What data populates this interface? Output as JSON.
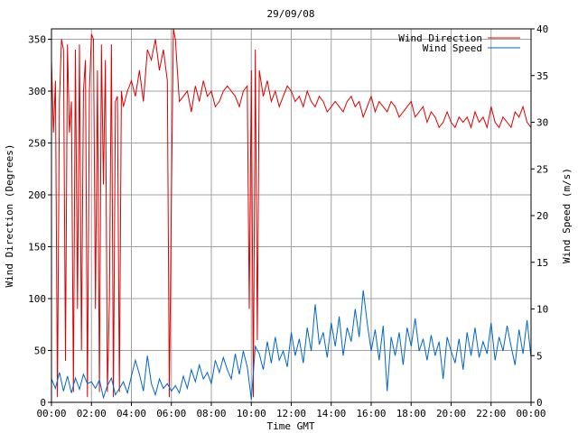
{
  "chart_data": {
    "type": "line",
    "title": "29/09/08",
    "xlabel": "Time GMT",
    "ylabel_left": "Wind Direction (Degrees)",
    "ylabel_right": "Wind Speed (m/s)",
    "x_range_hours": [
      0,
      24
    ],
    "x_tick_labels": [
      "00:00",
      "02:00",
      "04:00",
      "06:00",
      "08:00",
      "10:00",
      "12:00",
      "14:00",
      "16:00",
      "18:00",
      "20:00",
      "22:00",
      "00:00"
    ],
    "ylim_left": [
      0,
      360
    ],
    "y_ticks_left": [
      0,
      50,
      100,
      150,
      200,
      250,
      300,
      350
    ],
    "ylim_right": [
      0,
      40
    ],
    "y_ticks_right": [
      0,
      5,
      10,
      15,
      20,
      25,
      30,
      35,
      40
    ],
    "grid": true,
    "legend_position": "top-right",
    "colors": {
      "direction": "#dd0000",
      "speed": "#0066cc",
      "grid": "#a0a0a0"
    },
    "series": [
      {
        "name": "Wind Direction",
        "axis": "left",
        "x": [
          0,
          0.1,
          0.2,
          0.3,
          0.4,
          0.5,
          0.6,
          0.7,
          0.8,
          0.9,
          1.0,
          1.1,
          1.2,
          1.3,
          1.4,
          1.5,
          1.6,
          1.7,
          1.8,
          1.9,
          2.0,
          2.1,
          2.2,
          2.3,
          2.4,
          2.5,
          2.6,
          2.7,
          2.8,
          2.9,
          3.0,
          3.1,
          3.2,
          3.3,
          3.4,
          3.5,
          3.6,
          3.8,
          4.0,
          4.2,
          4.4,
          4.6,
          4.8,
          5.0,
          5.2,
          5.4,
          5.6,
          5.8,
          5.9,
          6.0,
          6.1,
          6.2,
          6.3,
          6.4,
          6.6,
          6.8,
          7.0,
          7.2,
          7.4,
          7.6,
          7.8,
          8.0,
          8.2,
          8.4,
          8.6,
          8.8,
          9.0,
          9.2,
          9.4,
          9.6,
          9.8,
          9.9,
          10.0,
          10.1,
          10.2,
          10.3,
          10.4,
          10.6,
          10.8,
          11.0,
          11.2,
          11.4,
          11.6,
          11.8,
          12.0,
          12.2,
          12.4,
          12.6,
          12.8,
          13.0,
          13.2,
          13.4,
          13.6,
          13.8,
          14.0,
          14.2,
          14.4,
          14.6,
          14.8,
          15.0,
          15.2,
          15.4,
          15.6,
          15.8,
          16.0,
          16.2,
          16.4,
          16.6,
          16.8,
          17.0,
          17.2,
          17.4,
          17.6,
          17.8,
          18.0,
          18.2,
          18.4,
          18.6,
          18.8,
          19.0,
          19.2,
          19.4,
          19.6,
          19.8,
          20.0,
          20.2,
          20.4,
          20.6,
          20.8,
          21.0,
          21.2,
          21.4,
          21.6,
          21.8,
          22.0,
          22.2,
          22.4,
          22.6,
          22.8,
          23.0,
          23.2,
          23.4,
          23.6,
          23.8,
          24.0
        ],
        "values": [
          330,
          260,
          310,
          5,
          290,
          350,
          340,
          40,
          345,
          260,
          290,
          10,
          340,
          90,
          345,
          50,
          300,
          330,
          5,
          300,
          355,
          350,
          90,
          320,
          10,
          345,
          210,
          330,
          10,
          100,
          345,
          5,
          290,
          295,
          10,
          300,
          285,
          300,
          310,
          295,
          320,
          290,
          340,
          330,
          350,
          320,
          340,
          310,
          5,
          200,
          360,
          350,
          320,
          290,
          295,
          300,
          280,
          305,
          290,
          310,
          295,
          300,
          285,
          290,
          300,
          305,
          300,
          295,
          285,
          300,
          305,
          90,
          320,
          5,
          340,
          60,
          320,
          295,
          310,
          290,
          300,
          285,
          295,
          305,
          300,
          290,
          295,
          285,
          300,
          290,
          285,
          295,
          290,
          280,
          285,
          290,
          285,
          280,
          290,
          295,
          285,
          290,
          275,
          285,
          295,
          280,
          290,
          285,
          280,
          290,
          285,
          275,
          280,
          285,
          290,
          275,
          280,
          285,
          270,
          280,
          275,
          265,
          270,
          280,
          270,
          265,
          275,
          270,
          275,
          265,
          280,
          270,
          275,
          265,
          285,
          270,
          265,
          275,
          270,
          265,
          280,
          275,
          285,
          270,
          265
        ]
      },
      {
        "name": "Wind Speed",
        "axis": "right",
        "x": [
          0,
          0.2,
          0.4,
          0.6,
          0.8,
          1.0,
          1.2,
          1.4,
          1.6,
          1.8,
          2.0,
          2.2,
          2.4,
          2.6,
          2.8,
          3.0,
          3.2,
          3.4,
          3.6,
          3.8,
          4.0,
          4.2,
          4.4,
          4.6,
          4.8,
          5.0,
          5.2,
          5.4,
          5.6,
          5.8,
          6.0,
          6.2,
          6.4,
          6.6,
          6.8,
          7.0,
          7.2,
          7.4,
          7.6,
          7.8,
          8.0,
          8.2,
          8.4,
          8.6,
          8.8,
          9.0,
          9.2,
          9.4,
          9.6,
          9.8,
          10.0,
          10.2,
          10.4,
          10.6,
          10.8,
          11.0,
          11.2,
          11.4,
          11.6,
          11.8,
          12.0,
          12.2,
          12.4,
          12.6,
          12.8,
          13.0,
          13.2,
          13.4,
          13.6,
          13.8,
          14.0,
          14.2,
          14.4,
          14.6,
          14.8,
          15.0,
          15.2,
          15.4,
          15.6,
          15.8,
          16.0,
          16.2,
          16.4,
          16.6,
          16.8,
          17.0,
          17.2,
          17.4,
          17.6,
          17.8,
          18.0,
          18.2,
          18.4,
          18.6,
          18.8,
          19.0,
          19.2,
          19.4,
          19.6,
          19.8,
          20.0,
          20.2,
          20.4,
          20.6,
          20.8,
          21.0,
          21.2,
          21.4,
          21.6,
          21.8,
          22.0,
          22.2,
          22.4,
          22.6,
          22.8,
          23.0,
          23.2,
          23.4,
          23.6,
          23.8,
          24.0
        ],
        "values": [
          2.5,
          1.5,
          3.2,
          1.2,
          2.8,
          1.0,
          2.6,
          1.4,
          3.0,
          2.0,
          2.2,
          1.5,
          2.4,
          0.5,
          1.8,
          2.6,
          0.8,
          1.5,
          2.2,
          1.0,
          2.8,
          4.5,
          3.0,
          1.2,
          5.0,
          2.0,
          0.8,
          2.5,
          1.5,
          2.0,
          1.2,
          1.8,
          1.0,
          2.8,
          1.5,
          3.5,
          2.2,
          4.0,
          2.5,
          3.2,
          2.0,
          4.5,
          3.2,
          4.8,
          3.5,
          2.5,
          5.2,
          3.0,
          5.5,
          3.8,
          0.3,
          6.0,
          5.2,
          3.5,
          6.5,
          4.2,
          7.0,
          4.5,
          5.5,
          3.8,
          7.5,
          5.0,
          6.8,
          4.2,
          8.0,
          5.5,
          10.5,
          6.2,
          7.5,
          4.8,
          8.5,
          6.0,
          9.2,
          5.0,
          8.0,
          6.5,
          10.0,
          7.0,
          12.0,
          8.5,
          5.5,
          7.8,
          4.5,
          8.2,
          1.2,
          7.0,
          5.0,
          7.5,
          4.0,
          8.0,
          6.0,
          9.0,
          5.5,
          6.8,
          4.5,
          7.2,
          5.0,
          6.5,
          2.5,
          7.0,
          5.5,
          4.2,
          6.8,
          3.5,
          7.5,
          5.0,
          8.0,
          4.8,
          6.5,
          5.2,
          8.5,
          4.5,
          7.0,
          5.5,
          8.2,
          6.0,
          4.0,
          7.8,
          5.2,
          8.8,
          4.8
        ]
      }
    ]
  }
}
